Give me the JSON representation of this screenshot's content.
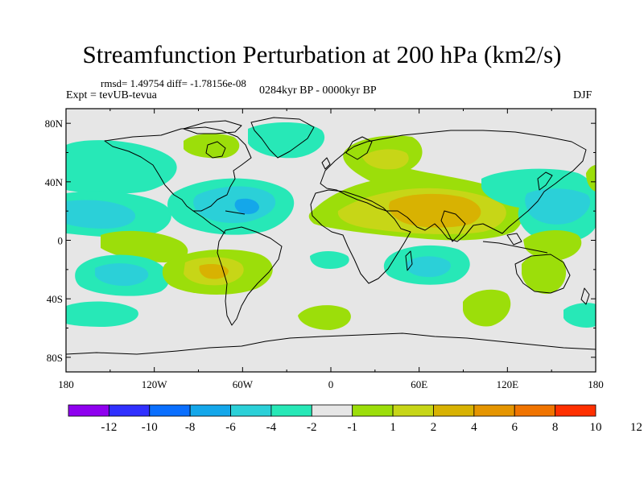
{
  "title": "Streamfunction Perturbation at 200 hPa (km2/s)",
  "stats": "rmsd= 1.49754  diff= -1.78156e-08",
  "experiment": "Expt = tevUB-tevua",
  "period": "0284kyr BP - 0000kyr BP",
  "season": "DJF",
  "axes": {
    "lat_ticks": [
      "80N",
      "40N",
      "0",
      "40S",
      "80S"
    ],
    "lon_ticks": [
      "180",
      "120W",
      "60W",
      "0",
      "60E",
      "120E",
      "180"
    ]
  },
  "colorbar": {
    "colors": [
      "#8f00ef",
      "#3030ff",
      "#0a6fff",
      "#14a7ea",
      "#2bd0d8",
      "#27e8b7",
      "#e6e6e6",
      "#9cde0a",
      "#c7d617",
      "#d8b202",
      "#e59500",
      "#f07400",
      "#ff3000"
    ],
    "labels": [
      "-12",
      "-10",
      "-8",
      "-6",
      "-4",
      "-2",
      "-1",
      "1",
      "2",
      "4",
      "6",
      "8",
      "10",
      "12"
    ]
  },
  "chart_data": {
    "type": "heatmap",
    "title": "Streamfunction Perturbation at 200 hPa (km2/s)",
    "projection": "cylindrical equidistant",
    "xlim": [
      -180,
      180
    ],
    "ylim": [
      -90,
      90
    ],
    "levels": [
      -12,
      -10,
      -8,
      -6,
      -4,
      -2,
      -1,
      1,
      2,
      4,
      6,
      8,
      10,
      12
    ],
    "anomaly_centers": [
      {
        "lon": -120,
        "lat": 62,
        "value": 1.5
      },
      {
        "lon": -25,
        "lat": 68,
        "value": -1.5
      },
      {
        "lon": -172,
        "lat": 50,
        "value": -1.5
      },
      {
        "lon": -165,
        "lat": 20,
        "value": -3
      },
      {
        "lon": -57,
        "lat": 22,
        "value": -5
      },
      {
        "lon": -140,
        "lat": -25,
        "value": -4.5
      },
      {
        "lon": -75,
        "lat": -25,
        "value": 3
      },
      {
        "lon": -130,
        "lat": 0,
        "value": 1.5
      },
      {
        "lon": -165,
        "lat": -55,
        "value": -1.5
      },
      {
        "lon": -40,
        "lat": -55,
        "value": 1.5
      },
      {
        "lon": 35,
        "lat": 55,
        "value": 3
      },
      {
        "lon": 75,
        "lat": 25,
        "value": 5
      },
      {
        "lon": 15,
        "lat": -20,
        "value": -1.5
      },
      {
        "lon": 55,
        "lat": -22,
        "value": -3
      },
      {
        "lon": 110,
        "lat": -50,
        "value": 1.5
      },
      {
        "lon": 40,
        "lat": -48,
        "value": 1.5
      },
      {
        "lon": 145,
        "lat": 20,
        "value": -3
      },
      {
        "lon": 162,
        "lat": 2,
        "value": 1.5
      },
      {
        "lon": 145,
        "lat": -22,
        "value": 2
      },
      {
        "lon": 170,
        "lat": -55,
        "value": -1.5
      },
      {
        "lon": 172,
        "lat": 40,
        "value": 1.5
      }
    ]
  }
}
